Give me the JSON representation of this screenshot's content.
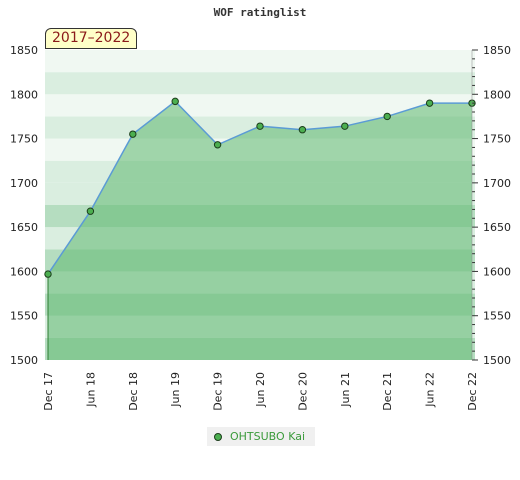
{
  "page": {
    "title": "WOF ratinglist",
    "badge": "2017–2022"
  },
  "colors": {
    "band_light": "#f0f8f2",
    "band_mid": "#daeee0",
    "band_deep": "#b5ddc0",
    "area_fill": "#5fb870",
    "line": "#5b9bd5",
    "marker": "#4caf50",
    "legend_text": "#3a9a3a"
  },
  "chart_data": {
    "type": "area",
    "title": "WOF ratinglist",
    "x": [
      "Dec 17",
      "Jun 18",
      "Dec 18",
      "Jun 19",
      "Dec 19",
      "Jun 20",
      "Dec 20",
      "Jun 21",
      "Dec 21",
      "Jun 22",
      "Dec 22"
    ],
    "series": [
      {
        "name": "OHTSUBO Kai",
        "values": [
          1597,
          1668,
          1755,
          1792,
          1743,
          1764,
          1760,
          1764,
          1775,
          1790,
          1790
        ]
      }
    ],
    "ylim": [
      1500,
      1850
    ],
    "yticks": [
      1500,
      1550,
      1600,
      1650,
      1700,
      1750,
      1800,
      1850
    ],
    "y_axis_right": true,
    "grid": false,
    "legend": "bottom-center"
  }
}
